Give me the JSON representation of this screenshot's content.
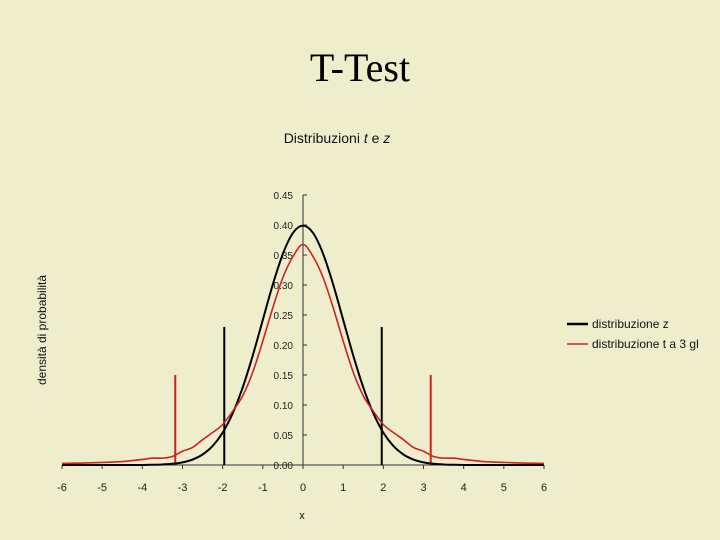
{
  "slide": {
    "title": "T-Test"
  },
  "chart_data": {
    "type": "line",
    "title_plain": "Distribuzioni ",
    "title_t": "t",
    "title_mid": " e ",
    "title_z": "z",
    "xlabel": "x",
    "ylabel": "densità di probabilità",
    "xlim": [
      -6,
      6
    ],
    "ylim": [
      0,
      0.45
    ],
    "x_ticks": [
      "-6",
      "-5",
      "-4",
      "-3",
      "-2",
      "-1",
      "0",
      "1",
      "2",
      "3",
      "4",
      "5",
      "6"
    ],
    "y_ticks": [
      "0.00",
      "0.05",
      "0.10",
      "0.15",
      "0.20",
      "0.25",
      "0.30",
      "0.35",
      "0.40",
      "0.45"
    ],
    "grid": false,
    "legend_position": "right",
    "series": [
      {
        "name": "distribuzione z",
        "color": "#000000",
        "x": [
          -6,
          -5.5,
          -5,
          -4.5,
          -4,
          -3.75,
          -3.5,
          -3.25,
          -3,
          -2.75,
          -2.5,
          -2.25,
          -2,
          -1.75,
          -1.5,
          -1.25,
          -1,
          -0.75,
          -0.5,
          -0.25,
          0,
          0.25,
          0.5,
          0.75,
          1,
          1.25,
          1.5,
          1.75,
          2,
          2.25,
          2.5,
          2.75,
          3,
          3.25,
          3.5,
          3.75,
          4,
          4.5,
          5,
          5.5,
          6
        ],
        "y": [
          0.0,
          0.0,
          0.0,
          0.0,
          0.0001,
          0.0004,
          0.0009,
          0.002,
          0.0044,
          0.0091,
          0.0175,
          0.0317,
          0.054,
          0.0863,
          0.1295,
          0.1826,
          0.242,
          0.3011,
          0.3521,
          0.3867,
          0.3989,
          0.3867,
          0.3521,
          0.3011,
          0.242,
          0.1826,
          0.1295,
          0.0863,
          0.054,
          0.0317,
          0.0175,
          0.0091,
          0.0044,
          0.002,
          0.0009,
          0.0004,
          0.0001,
          0.0,
          0.0,
          0.0,
          0.0
        ]
      },
      {
        "name": "distribuzione t a 3 gl",
        "color": "#cc2222",
        "x": [
          -6,
          -5.5,
          -5,
          -4.5,
          -4,
          -3.75,
          -3.5,
          -3.25,
          -3,
          -2.75,
          -2.5,
          -2.25,
          -2,
          -1.75,
          -1.5,
          -1.25,
          -1,
          -0.75,
          -0.5,
          -0.25,
          0,
          0.25,
          0.5,
          0.75,
          1,
          1.25,
          1.5,
          1.75,
          2,
          2.25,
          2.5,
          2.75,
          3,
          3.25,
          3.5,
          3.75,
          4,
          4.5,
          5,
          5.5,
          6
        ],
        "y": [
          0.0026,
          0.0033,
          0.0042,
          0.0057,
          0.0092,
          0.0115,
          0.0114,
          0.0141,
          0.0229,
          0.0292,
          0.0422,
          0.0541,
          0.0675,
          0.0897,
          0.1155,
          0.1548,
          0.2067,
          0.2625,
          0.3125,
          0.3475,
          0.3676,
          0.3475,
          0.3125,
          0.2625,
          0.2067,
          0.1548,
          0.1155,
          0.0897,
          0.0675,
          0.0541,
          0.0422,
          0.0292,
          0.0229,
          0.0141,
          0.0114,
          0.0115,
          0.0092,
          0.0057,
          0.0042,
          0.0033,
          0.0026
        ]
      }
    ],
    "markers": [
      {
        "x": -3.18,
        "height": 0.15,
        "color": "#cc2222"
      },
      {
        "x": -1.96,
        "height": 0.23,
        "color": "#000000"
      },
      {
        "x": 1.96,
        "height": 0.23,
        "color": "#000000"
      },
      {
        "x": 3.18,
        "height": 0.15,
        "color": "#cc2222"
      }
    ]
  }
}
